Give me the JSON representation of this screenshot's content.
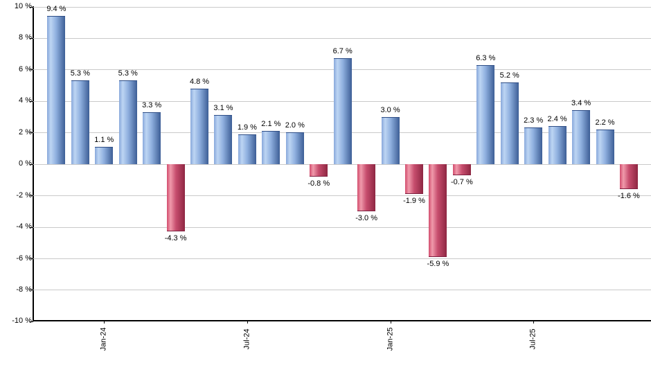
{
  "chart_data": {
    "type": "bar",
    "title": "",
    "unit": "%",
    "values": [
      9.4,
      5.3,
      1.1,
      5.3,
      3.3,
      -4.3,
      4.8,
      3.1,
      1.9,
      2.1,
      2.0,
      -0.8,
      6.7,
      -3.0,
      3.0,
      -1.9,
      -5.9,
      -0.7,
      6.3,
      5.2,
      2.3,
      2.4,
      3.4,
      2.2,
      -1.6
    ],
    "bar_labels": [
      "9.4 %",
      "5.3 %",
      "1.1 %",
      "5.3 %",
      "3.3 %",
      "-4.3 %",
      "4.8 %",
      "3.1 %",
      "1.9 %",
      "2.1 %",
      "2.0 %",
      "-0.8 %",
      "6.7 %",
      "-3.0 %",
      "3.0 %",
      "-1.9 %",
      "-5.9 %",
      "-0.7 %",
      "6.3 %",
      "5.2 %",
      "2.3 %",
      "2.4 %",
      "3.4 %",
      "2.2 %",
      "-1.6 %"
    ],
    "bar_color_rule": "positive bars blue, negative bars red",
    "x_ticks": [
      {
        "label": "Jan-24",
        "bar_index": 2
      },
      {
        "label": "Jul-24",
        "bar_index": 8
      },
      {
        "label": "Jan-25",
        "bar_index": 14
      },
      {
        "label": "Jul-25",
        "bar_index": 20
      }
    ],
    "y_ticks": [
      {
        "value": 10,
        "label": "10 %"
      },
      {
        "value": 8,
        "label": "8 %"
      },
      {
        "value": 6,
        "label": "6 %"
      },
      {
        "value": 4,
        "label": "4 %"
      },
      {
        "value": 2,
        "label": "2 %"
      },
      {
        "value": 0,
        "label": "0 %"
      },
      {
        "value": -2,
        "label": "-2 %"
      },
      {
        "value": -4,
        "label": "-4 %"
      },
      {
        "value": -6,
        "label": "-6 %"
      },
      {
        "value": -8,
        "label": "-8 %"
      },
      {
        "value": -10,
        "label": "-10 %"
      }
    ],
    "ylim": [
      -10,
      10
    ],
    "xlabel": "",
    "ylabel": "",
    "grid": true,
    "legend": "none"
  },
  "style": {
    "background": "#ffffff",
    "grid_color": "#c9c9c9",
    "axis_color": "#000000",
    "text_color": "#000000",
    "positive_bar_gradient": [
      "#88A8DB",
      "#BDD5F3",
      "#8FB0DF",
      "#3D5E96"
    ],
    "positive_bar_cap": "#2F4E86",
    "negative_bar_gradient": [
      "#D24C6D",
      "#F09AAB",
      "#C74E6E",
      "#8E2642"
    ],
    "negative_bar_cap": "#7E2040"
  }
}
